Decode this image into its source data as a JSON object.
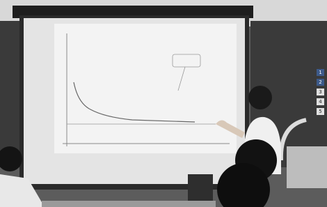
{
  "board_labels": [
    "1",
    "2",
    "3",
    "4",
    "5"
  ]
}
